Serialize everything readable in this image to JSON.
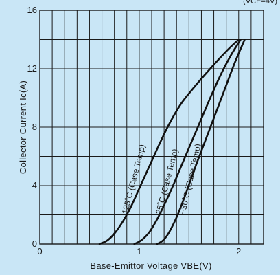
{
  "chart_data": {
    "type": "line",
    "title": "",
    "note": "(VCE=4V)",
    "xlabel": "Base-Emittor Voltage VBE(V)",
    "ylabel": "Collector Current Ic(A)",
    "xlim": [
      0,
      2.25
    ],
    "ylim": [
      0,
      16
    ],
    "x_major_ticks": [
      0,
      1,
      2
    ],
    "x_major_labels": [
      "0",
      "1",
      "2"
    ],
    "y_major_ticks": [
      0,
      4,
      8,
      12,
      16
    ],
    "y_major_labels": [
      "0",
      "4",
      "8",
      "12",
      "16"
    ],
    "x_grid_step": 0.125,
    "y_grid_step": 2,
    "grid": true,
    "legend": "none",
    "line_color": "#111111",
    "grid_color": "#1a1a1a",
    "series": [
      {
        "name": "125˚C (Case Temp)",
        "label_anchor": [
          0.88,
          2.0
        ],
        "label_angle_data": [
          0.2,
          5.3
        ],
        "x": [
          0.6,
          0.68,
          0.76,
          0.84,
          0.92,
          1.0,
          1.1,
          1.2,
          1.3,
          1.42,
          1.56,
          1.7,
          1.82,
          1.92,
          2.0
        ],
        "y": [
          0,
          0.25,
          0.8,
          1.6,
          2.6,
          3.8,
          5.3,
          6.8,
          8.2,
          9.6,
          10.8,
          11.9,
          12.8,
          13.5,
          14.0
        ]
      },
      {
        "name": "25˚C (Case Temp)",
        "label_anchor": [
          1.22,
          2.0
        ],
        "label_angle_data": [
          0.22,
          5.8
        ],
        "x": [
          0.95,
          1.02,
          1.1,
          1.18,
          1.26,
          1.34,
          1.42,
          1.52,
          1.62,
          1.72,
          1.82,
          1.92,
          2.02
        ],
        "y": [
          0,
          0.25,
          0.8,
          1.7,
          2.8,
          4.0,
          5.3,
          6.9,
          8.5,
          10.1,
          11.6,
          12.9,
          14.0
        ]
      },
      {
        "name": "−30˚C (Case Temp)",
        "label_anchor": [
          1.46,
          2.0
        ],
        "label_angle_data": [
          0.2,
          6.0
        ],
        "x": [
          1.18,
          1.24,
          1.3,
          1.38,
          1.46,
          1.56,
          1.66,
          1.76,
          1.86,
          1.96,
          2.06
        ],
        "y": [
          0,
          0.25,
          0.8,
          1.9,
          3.3,
          5.2,
          7.0,
          8.8,
          10.6,
          12.4,
          14.0
        ]
      }
    ]
  }
}
